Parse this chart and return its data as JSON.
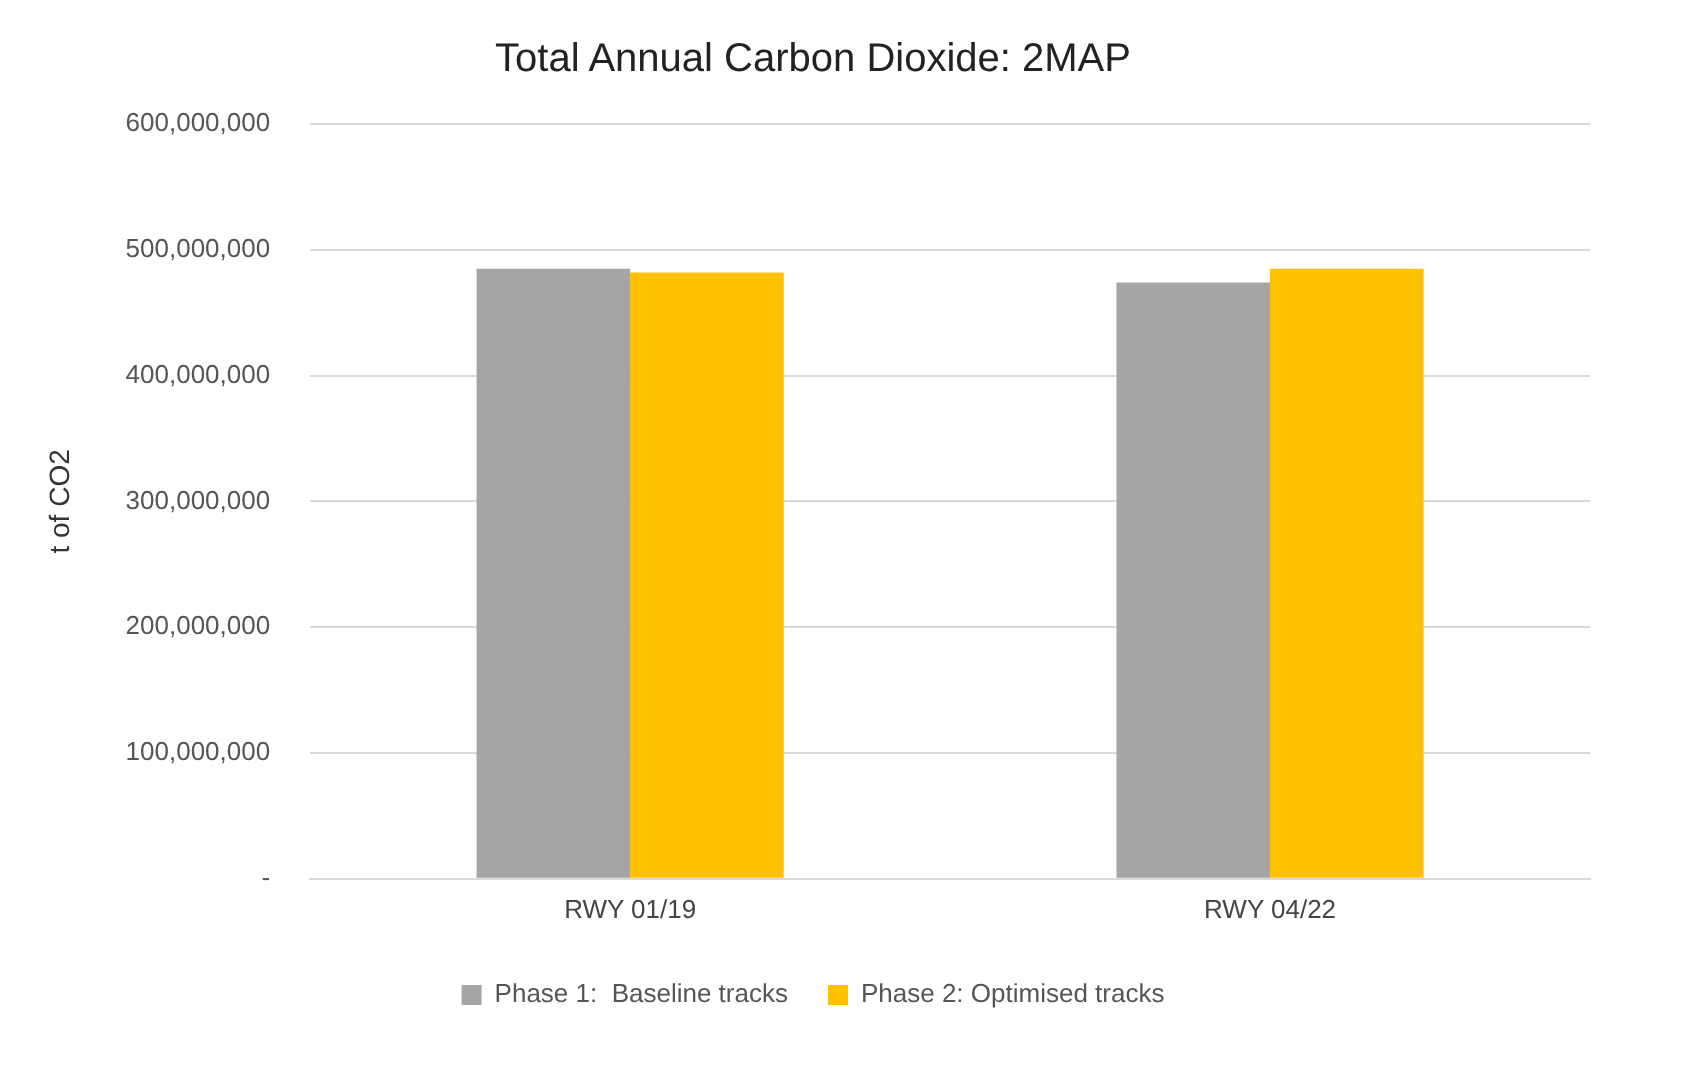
{
  "chart_data": {
    "type": "bar",
    "title": "Total Annual Carbon Dioxide: 2MAP",
    "ylabel": "t of CO2",
    "categories": [
      "RWY 01/19",
      "RWY 04/22"
    ],
    "series": [
      {
        "name": "Phase 1:  Baseline tracks",
        "color": "#a5a5a5",
        "values": [
          485000000,
          474000000
        ]
      },
      {
        "name": "Phase 2: Optimised tracks",
        "color": "#ffc000",
        "values": [
          482000000,
          485000000
        ]
      }
    ],
    "ylim": [
      0,
      600000000
    ],
    "yticks": [
      {
        "value": 0,
        "label": "-"
      },
      {
        "value": 100000000,
        "label": "100,000,000"
      },
      {
        "value": 200000000,
        "label": "200,000,000"
      },
      {
        "value": 300000000,
        "label": "300,000,000"
      },
      {
        "value": 400000000,
        "label": "400,000,000"
      },
      {
        "value": 500000000,
        "label": "500,000,000"
      },
      {
        "value": 600000000,
        "label": "600,000,000"
      }
    ],
    "grid": "y",
    "legend": "bottom"
  }
}
